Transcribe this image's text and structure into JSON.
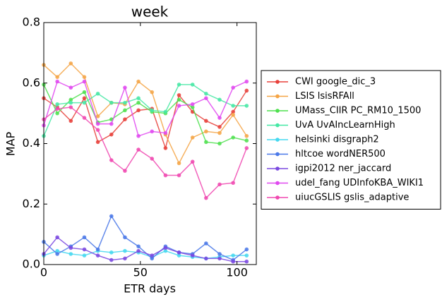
{
  "chart_data": {
    "type": "line",
    "title": "week",
    "x_label": "ETR days",
    "y_label": "MAP",
    "x": [
      0,
      7,
      14,
      21,
      28,
      35,
      42,
      49,
      56,
      63,
      70,
      77,
      84,
      91,
      98,
      105
    ],
    "xlim": [
      0,
      110
    ],
    "xticks": [
      0,
      50,
      100
    ],
    "ylim": [
      0,
      0.8
    ],
    "yticks": [
      {
        "value": 0,
        "label": "0.0"
      },
      {
        "value": 0.2,
        "label": "0.2"
      },
      {
        "value": 0.4,
        "label": "0.4"
      },
      {
        "value": 0.6,
        "label": "0.6"
      },
      {
        "value": 0.8,
        "label": "0.8"
      }
    ],
    "legend": "right outside",
    "series": [
      {
        "name": "CWI google_dic_3",
        "color": "#e8403a",
        "values": [
          0.55,
          0.52,
          0.475,
          0.55,
          0.405,
          0.43,
          0.48,
          0.51,
          0.515,
          0.385,
          0.56,
          0.505,
          0.475,
          0.455,
          0.505,
          0.575
        ]
      },
      {
        "name": "LSIS lsisRFAll",
        "color": "#f5a445",
        "values": [
          0.66,
          0.62,
          0.665,
          0.62,
          0.49,
          0.535,
          0.53,
          0.605,
          0.57,
          0.43,
          0.335,
          0.42,
          0.44,
          0.435,
          0.495,
          0.425
        ]
      },
      {
        "name": "UMass_CIIR PC_RM10_1500",
        "color": "#4fe04f",
        "values": [
          0.595,
          0.5,
          0.545,
          0.57,
          0.47,
          0.48,
          0.51,
          0.535,
          0.505,
          0.5,
          0.545,
          0.52,
          0.405,
          0.4,
          0.42,
          0.41
        ]
      },
      {
        "name": "UvA UvAIncLearnHigh",
        "color": "#45e8a5",
        "values": [
          0.425,
          0.53,
          0.535,
          0.535,
          0.565,
          0.535,
          0.535,
          0.55,
          0.51,
          0.505,
          0.595,
          0.595,
          0.565,
          0.545,
          0.525,
          0.525
        ]
      },
      {
        "name": "helsinki disgraph2",
        "color": "#45d8f0",
        "values": [
          0.03,
          0.045,
          0.035,
          0.03,
          0.045,
          0.04,
          0.045,
          0.04,
          0.025,
          0.045,
          0.03,
          0.025,
          0.02,
          0.025,
          0.03,
          0.03
        ]
      },
      {
        "name": "hltcoe wordNER500",
        "color": "#4a78e8",
        "values": [
          0.075,
          0.035,
          0.06,
          0.09,
          0.05,
          0.16,
          0.09,
          0.06,
          0.02,
          0.06,
          0.04,
          0.035,
          0.07,
          0.035,
          0.015,
          0.05
        ]
      },
      {
        "name": "igpi2012 ner_jaccard",
        "color": "#7a48e0",
        "values": [
          0.035,
          0.09,
          0.055,
          0.05,
          0.03,
          0.015,
          0.02,
          0.045,
          0.03,
          0.055,
          0.04,
          0.03,
          0.02,
          0.02,
          0.01,
          0.01
        ]
      },
      {
        "name": "udel_fang UDInfoKBA_WIKI1",
        "color": "#e048f0",
        "values": [
          0.46,
          0.605,
          0.585,
          0.605,
          0.465,
          0.465,
          0.585,
          0.425,
          0.44,
          0.435,
          0.525,
          0.53,
          0.55,
          0.485,
          0.585,
          0.605
        ]
      },
      {
        "name": "uiucGSLIS gslis_adaptive",
        "color": "#f048b0",
        "values": [
          0.48,
          0.515,
          0.52,
          0.485,
          0.445,
          0.345,
          0.31,
          0.38,
          0.35,
          0.295,
          0.295,
          0.34,
          0.22,
          0.265,
          0.27,
          0.385
        ]
      }
    ]
  }
}
